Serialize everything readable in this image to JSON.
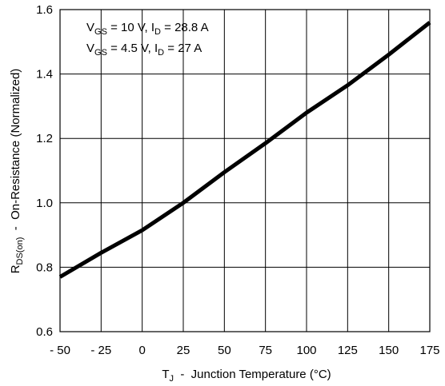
{
  "chart_data": {
    "type": "line",
    "title": "",
    "xlabel": {
      "main": "T",
      "sub": "J",
      "rest": "  -  Junction Temperature (°C)"
    },
    "ylabel": {
      "main": "R",
      "sub": "DS(on)",
      "rest": "  -  On-Resistance (Normalized)"
    },
    "xlim": [
      -50,
      175
    ],
    "ylim": [
      0.6,
      1.6
    ],
    "grid": true,
    "x_tick_labels": [
      "- 50",
      "- 25",
      "0",
      "25",
      "50",
      "75",
      "100",
      "125",
      "150",
      "175"
    ],
    "y_tick_labels": [
      "0.6",
      "0.8",
      "1.0",
      "1.2",
      "1.4",
      "1.6"
    ],
    "conditions": [
      {
        "v_main": "V",
        "v_sub": "GS",
        "v_value": " = 10 V, ",
        "i_main": "I",
        "i_sub": "D",
        "i_value": " = 28.8 A"
      },
      {
        "v_main": "V",
        "v_sub": "GS",
        "v_value": " = 4.5 V, ",
        "i_main": "I",
        "i_sub": "D",
        "i_value": " = 27 A"
      }
    ],
    "series": [
      {
        "x": [
          -50,
          -25,
          0,
          25,
          50,
          75,
          100,
          125,
          150,
          175
        ],
        "y": [
          0.77,
          0.845,
          0.915,
          1.0,
          1.095,
          1.185,
          1.28,
          1.365,
          1.46,
          1.56
        ]
      }
    ]
  }
}
